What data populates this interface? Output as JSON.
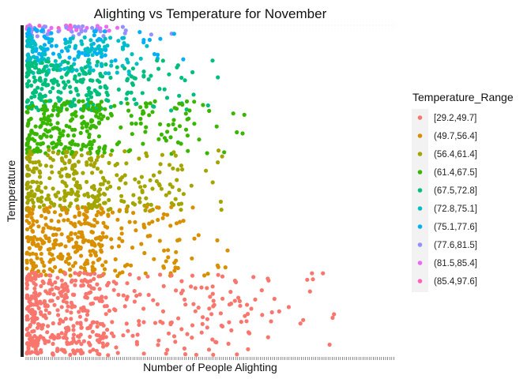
{
  "chart_data": {
    "type": "scatter",
    "title": "Alighting vs Temperature for November",
    "xlabel": "Number of People Alighting",
    "ylabel": "Temperature",
    "x_tick_labels_shown": false,
    "y_tick_labels_shown": false,
    "legend_title": "Temperature_Range",
    "legend_position": "right",
    "point_count_approx": 1900,
    "series": [
      {
        "name": "[29.2,49.7]",
        "color": "#F8766D"
      },
      {
        "name": "(49.7,56.4]",
        "color": "#D89000"
      },
      {
        "name": "(56.4,61.4]",
        "color": "#A3A500"
      },
      {
        "name": "(61.4,67.5]",
        "color": "#39B600"
      },
      {
        "name": "(67.5,72.8]",
        "color": "#00BF7D"
      },
      {
        "name": "(72.8,75.1]",
        "color": "#00BFC4"
      },
      {
        "name": "(75.1,77.6]",
        "color": "#00B0F6"
      },
      {
        "name": "(77.6,81.5]",
        "color": "#9590FF"
      },
      {
        "name": "(81.5,85.4]",
        "color": "#E76BF3"
      },
      {
        "name": "(85.4,97.6]",
        "color": "#FF62BC"
      }
    ]
  }
}
